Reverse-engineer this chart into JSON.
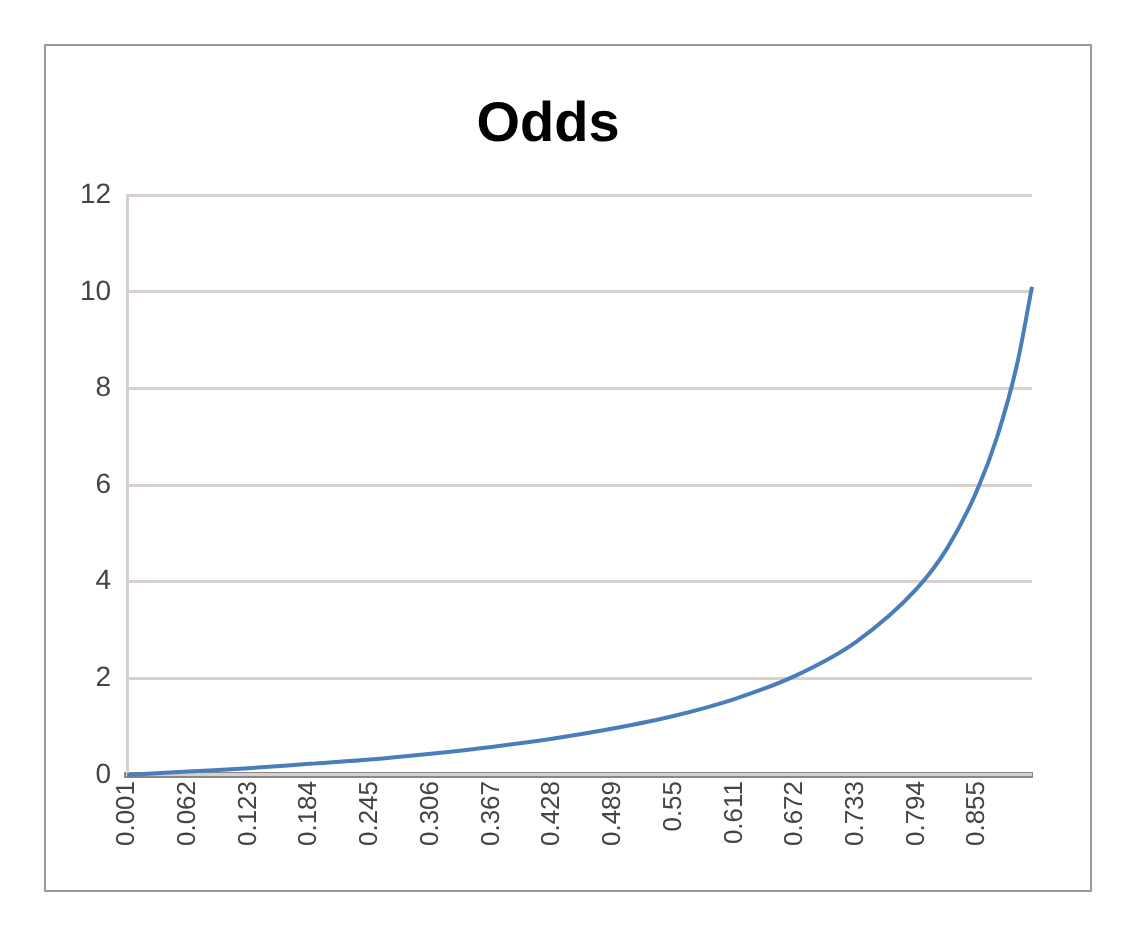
{
  "chart_data": {
    "type": "line",
    "title": "Odds",
    "x": [
      0.001,
      0.062,
      0.123,
      0.184,
      0.245,
      0.306,
      0.367,
      0.428,
      0.489,
      0.55,
      0.611,
      0.672,
      0.733,
      0.794,
      0.825,
      0.855,
      0.875,
      0.895,
      0.91
    ],
    "values": [
      0,
      0.07,
      0.14,
      0.23,
      0.32,
      0.44,
      0.58,
      0.75,
      0.96,
      1.22,
      1.57,
      2.05,
      2.75,
      3.85,
      4.7,
      5.9,
      7.0,
      8.5,
      10.1
    ],
    "color": "#4a7ebb",
    "xlim": [
      0.001,
      0.91
    ],
    "xticks": [
      0.001,
      0.062,
      0.123,
      0.184,
      0.245,
      0.306,
      0.367,
      0.428,
      0.489,
      0.55,
      0.611,
      0.672,
      0.733,
      0.794,
      0.855
    ],
    "ylim": [
      0,
      12
    ],
    "yticks": [
      0,
      2,
      4,
      6,
      8,
      10,
      12
    ],
    "grid": "y",
    "legend": false,
    "marker": "none",
    "line_style": "solid"
  }
}
